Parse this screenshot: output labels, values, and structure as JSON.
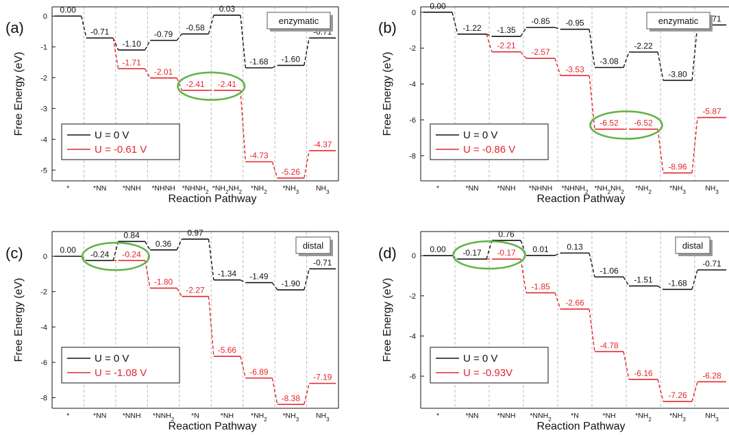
{
  "colors": {
    "u0": "#111111",
    "u": "#e3262c",
    "ellipse": "#62b44a",
    "grid": "#b8b8b8"
  },
  "panels": [
    {
      "label": "(a)",
      "mode": "enzymatic",
      "ylabel": "Free Energy (eV)",
      "xlabel": "Reaction Pathway",
      "ylim": [
        -5.35,
        0.3
      ],
      "yticks": [
        0,
        -1,
        -2,
        -3,
        -4,
        -5
      ],
      "categories": [
        "*",
        "*NN",
        "*NNH",
        "*NHNH",
        "*NHNH2",
        "*NH2NH2",
        "*NH2",
        "*NH3",
        "NH3"
      ],
      "series": [
        {
          "name": "U = 0 V",
          "values": [
            0.0,
            -0.71,
            -1.1,
            -0.79,
            -0.58,
            0.03,
            -1.68,
            -1.6,
            -0.71
          ],
          "labels": [
            "0.00",
            "-0.71",
            "-1.10",
            "-0.79",
            "-0.58",
            "0.03",
            "-1.68",
            "-1.60",
            "-0.71"
          ]
        },
        {
          "name": "U = -0.61 V",
          "values": [
            null,
            null,
            -1.71,
            -2.01,
            -2.41,
            -2.41,
            -4.73,
            -5.26,
            -4.37
          ],
          "labels": [
            "",
            "",
            "-1.71",
            "-2.01",
            "-2.41",
            "-2.41",
            "-4.73",
            "-5.26",
            "-4.37"
          ]
        }
      ],
      "highlight": [
        4,
        5
      ]
    },
    {
      "label": "(b)",
      "mode": "enzymatic",
      "ylabel": "Free Energy (eV)",
      "xlabel": "Reaction Pathway",
      "ylim": [
        -9.4,
        0.3
      ],
      "yticks": [
        0,
        -2,
        -4,
        -6,
        -8
      ],
      "categories": [
        "*",
        "*NN",
        "*NNH",
        "*NHNH",
        "*NHNH2",
        "*NH2NH2",
        "*NH2",
        "*NH3",
        "NH3"
      ],
      "series": [
        {
          "name": "U = 0 V",
          "values": [
            0.0,
            -1.22,
            -1.35,
            -0.85,
            -0.95,
            -3.08,
            -2.22,
            -3.8,
            -0.71
          ],
          "labels": [
            "0.00",
            "-1.22",
            "-1.35",
            "-0.85",
            "-0.95",
            "-3.08",
            "-2.22",
            "-3.80",
            "-0.71"
          ]
        },
        {
          "name": "U = -0.86 V",
          "values": [
            null,
            null,
            -2.21,
            -2.57,
            -3.53,
            -6.52,
            -6.52,
            -8.96,
            -5.87
          ],
          "labels": [
            "",
            "",
            "-2.21",
            "-2.57",
            "-3.53",
            "-6.52",
            "-6.52",
            "-8.96",
            "-5.87"
          ]
        }
      ],
      "highlight": [
        5,
        6
      ]
    },
    {
      "label": "(c)",
      "mode": "distal",
      "ylabel": "Free Energy (eV)",
      "xlabel": "Reaction Pathway",
      "ylim": [
        -8.6,
        1.4
      ],
      "yticks": [
        0,
        -2,
        -4,
        -6,
        -8
      ],
      "categories": [
        "*",
        "*NN",
        "*NNH",
        "*NNH2",
        "*N",
        "*NH",
        "*NH2",
        "*NH3",
        "NH3"
      ],
      "series": [
        {
          "name": "U = 0 V",
          "values": [
            0.0,
            -0.24,
            0.84,
            0.36,
            0.97,
            -1.34,
            -1.49,
            -1.9,
            -0.71
          ],
          "labels": [
            "0.00",
            "-0.24",
            "0.84",
            "0.36",
            "0.97",
            "-1.34",
            "-1.49",
            "-1.90",
            "-0.71"
          ]
        },
        {
          "name": "U = -1.08 V",
          "values": [
            null,
            null,
            -0.24,
            -1.8,
            -2.27,
            -5.66,
            -6.89,
            -8.38,
            -7.19
          ],
          "labels": [
            "",
            "",
            "-0.24",
            "-1.80",
            "-2.27",
            "-5.66",
            "-6.89",
            "-8.38",
            "-7.19"
          ]
        }
      ],
      "highlight": [
        1,
        2
      ]
    },
    {
      "label": "(d)",
      "mode": "distal",
      "ylabel": "Free Energy (eV)",
      "xlabel": "Reaction Pathway",
      "ylim": [
        -7.6,
        1.2
      ],
      "yticks": [
        0,
        -2,
        -4,
        -6
      ],
      "categories": [
        "*",
        "*NN",
        "*NNH",
        "*NNH2",
        "*N",
        "*NH",
        "*NH2",
        "*NH3",
        "NH3"
      ],
      "series": [
        {
          "name": "U = 0 V",
          "values": [
            0.0,
            -0.17,
            0.76,
            0.01,
            0.13,
            -1.06,
            -1.51,
            -1.68,
            -0.71
          ],
          "labels": [
            "0.00",
            "-0.17",
            "0.76",
            "0.01",
            "0.13",
            "-1.06",
            "-1.51",
            "-1.68",
            "-0.71"
          ]
        },
        {
          "name": "U = -0.93V",
          "values": [
            null,
            null,
            -0.17,
            -1.85,
            -2.66,
            -4.78,
            -6.16,
            -7.26,
            -6.28
          ],
          "labels": [
            "",
            "",
            "-0.17",
            "-1.85",
            "-2.66",
            "-4.78",
            "-6.16",
            "-7.26",
            "-6.28"
          ]
        }
      ],
      "highlight": [
        1,
        2
      ]
    }
  ]
}
